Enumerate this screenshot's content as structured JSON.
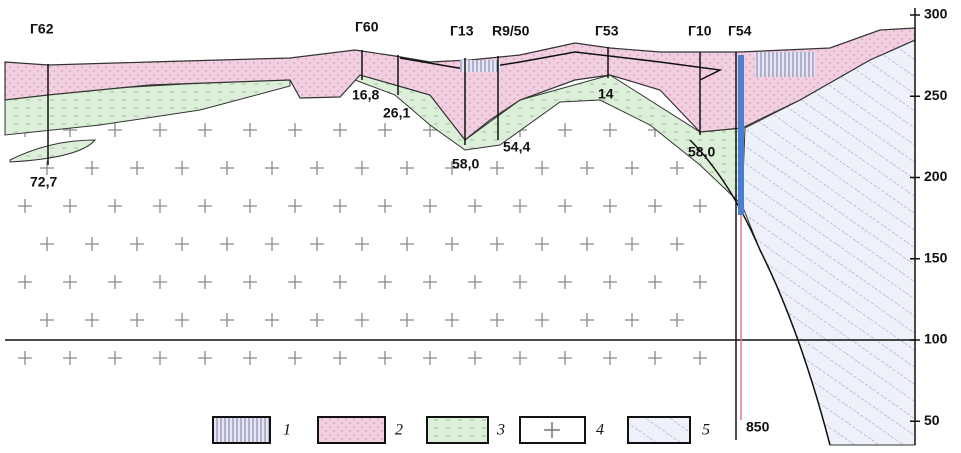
{
  "boreholes": [
    "Г62",
    "Г60",
    "Г13",
    "R9/50",
    "Г53",
    "Г10",
    "Г54"
  ],
  "depths": [
    "72,7",
    "16,8",
    "26,1",
    "58,0",
    "54,4",
    "14",
    "58,0",
    "850"
  ],
  "scale": {
    "ticks": [
      300,
      250,
      200,
      150,
      100,
      50
    ]
  },
  "legend": [
    "1",
    "2",
    "3",
    "4",
    "5"
  ]
}
